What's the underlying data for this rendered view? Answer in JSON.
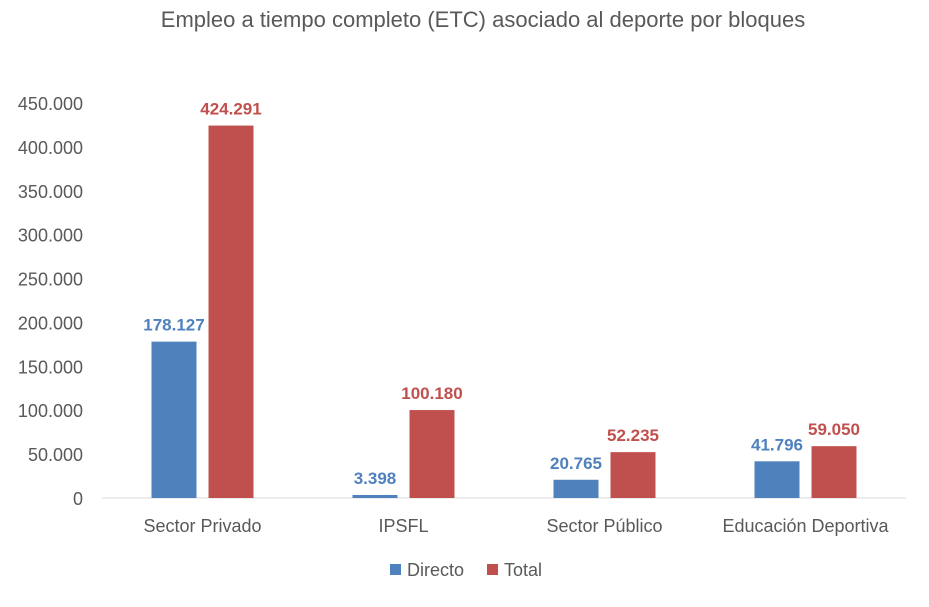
{
  "chart_data": {
    "type": "bar",
    "title": "Empleo a tiempo completo (ETC) asociado al deporte por bloques",
    "xlabel": "",
    "ylabel": "",
    "categories": [
      "Sector Privado",
      "IPSFL",
      "Sector Público",
      "Educación Deportiva"
    ],
    "series": [
      {
        "name": "Directo",
        "color": "#4F81BD",
        "values": [
          178127,
          3398,
          20765,
          41796
        ],
        "labels": [
          "178.127",
          "3.398",
          "20.765",
          "41.796"
        ]
      },
      {
        "name": "Total",
        "color": "#C0504D",
        "values": [
          424291,
          100180,
          52235,
          59050
        ],
        "labels": [
          "424.291",
          "100.180",
          "52.235",
          "59.050"
        ]
      }
    ],
    "ylim": [
      0,
      450000
    ],
    "yticks": [
      0,
      50000,
      100000,
      150000,
      200000,
      250000,
      300000,
      350000,
      400000,
      450000
    ],
    "ytick_labels": [
      "0",
      "50.000",
      "100.000",
      "150.000",
      "200.000",
      "250.000",
      "300.000",
      "350.000",
      "400.000",
      "450.000"
    ],
    "grid": false,
    "legend": "bottom"
  }
}
